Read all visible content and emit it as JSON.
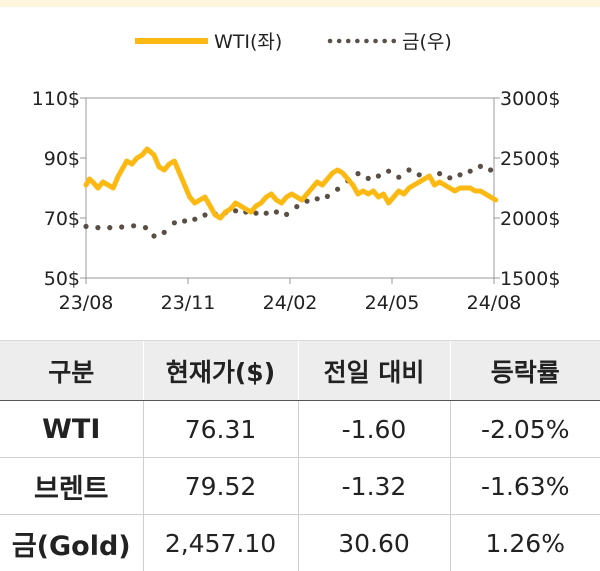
{
  "chart_data": {
    "type": "line",
    "legend": {
      "placement": "top-center",
      "entries": [
        {
          "label": "WTI(좌)",
          "color": "#FDB913",
          "style": "solid"
        },
        {
          "label": "금(우)",
          "color": "#5a4f45",
          "style": "dotted"
        }
      ]
    },
    "x_ticks": [
      "23/08",
      "23/11",
      "24/02",
      "24/05",
      "24/08"
    ],
    "y_left": {
      "ticks": [
        "110$",
        "90$",
        "70$",
        "50$"
      ],
      "range": [
        50,
        110
      ]
    },
    "y_right": {
      "ticks": [
        "3000$",
        "2500$",
        "2000$",
        "1500$"
      ],
      "range": [
        1500,
        3000
      ]
    },
    "series": [
      {
        "name": "WTI(좌)",
        "axis": "left",
        "color": "#FDB913",
        "x": [
          0,
          0.1,
          0.2,
          0.35,
          0.5,
          0.65,
          0.8,
          0.95,
          1.05,
          1.2,
          1.35,
          1.5,
          1.65,
          1.8,
          2.0,
          2.15,
          2.3,
          2.45,
          2.6,
          2.75,
          2.9,
          3.05,
          3.2,
          3.35,
          3.5,
          3.65,
          3.8,
          3.95,
          4.1,
          4.25,
          4.4,
          4.55,
          4.7,
          4.85,
          5.0,
          5.15,
          5.3,
          5.45,
          5.6,
          5.75,
          5.9,
          6.05,
          6.2,
          6.35,
          6.5,
          6.65,
          6.8,
          6.95,
          7.1,
          7.25,
          7.4,
          7.55,
          7.7,
          7.85,
          8.0,
          8.15,
          8.3,
          8.45,
          8.6,
          8.75,
          8.9,
          9.05,
          9.2,
          9.35,
          9.5,
          9.65,
          9.8,
          9.95,
          10.1,
          10.25,
          10.4,
          10.55,
          10.7,
          10.85,
          11.0,
          11.15,
          11.3,
          11.45,
          11.6,
          11.75,
          11.9,
          12.05
        ],
        "values": [
          81,
          83,
          82,
          80,
          82,
          81,
          80,
          84,
          86,
          89,
          88,
          90,
          91,
          93,
          91,
          87,
          86,
          88,
          89,
          85,
          81,
          77,
          75,
          76,
          77,
          74,
          71,
          70,
          72,
          73,
          75,
          74,
          73,
          72,
          74,
          75,
          77,
          78,
          76,
          75,
          77,
          78,
          77,
          76,
          78,
          80,
          82,
          81,
          83,
          85,
          86,
          85,
          83,
          81,
          78,
          79,
          78,
          79,
          77,
          78,
          75,
          77,
          79,
          78,
          80,
          81,
          82,
          83,
          84,
          81,
          82,
          81,
          80,
          79,
          80,
          80,
          80,
          79,
          79,
          78,
          77,
          76
        ]
      },
      {
        "name": "금(우)",
        "axis": "right",
        "color": "#5a4f45",
        "x": [
          0,
          0.35,
          0.7,
          1.05,
          1.4,
          1.75,
          2.0,
          2.3,
          2.6,
          2.9,
          3.2,
          3.5,
          3.8,
          4.1,
          4.4,
          4.7,
          5.0,
          5.3,
          5.6,
          5.9,
          6.2,
          6.5,
          6.8,
          7.1,
          7.4,
          7.7,
          8.0,
          8.3,
          8.6,
          8.9,
          9.2,
          9.5,
          9.8,
          10.1,
          10.4,
          10.7,
          11.0,
          11.3,
          11.6,
          11.9
        ],
        "values": [
          1930,
          1920,
          1920,
          1925,
          1935,
          1920,
          1850,
          1880,
          1960,
          1975,
          1990,
          2025,
          2035,
          2045,
          2060,
          2050,
          2040,
          2040,
          2050,
          2030,
          2095,
          2140,
          2160,
          2180,
          2240,
          2310,
          2370,
          2330,
          2350,
          2390,
          2340,
          2400,
          2360,
          2340,
          2370,
          2335,
          2360,
          2390,
          2430,
          2400
        ]
      }
    ]
  },
  "table": {
    "headers": [
      "구분",
      "현재가($)",
      "전일 대비",
      "등락률"
    ],
    "rows": [
      [
        "WTI",
        "76.31",
        "-1.60",
        "-2.05%"
      ],
      [
        "브렌트",
        "79.52",
        "-1.32",
        "-1.63%"
      ],
      [
        "금(Gold)",
        "2,457.10",
        "30.60",
        "1.26%"
      ]
    ]
  }
}
